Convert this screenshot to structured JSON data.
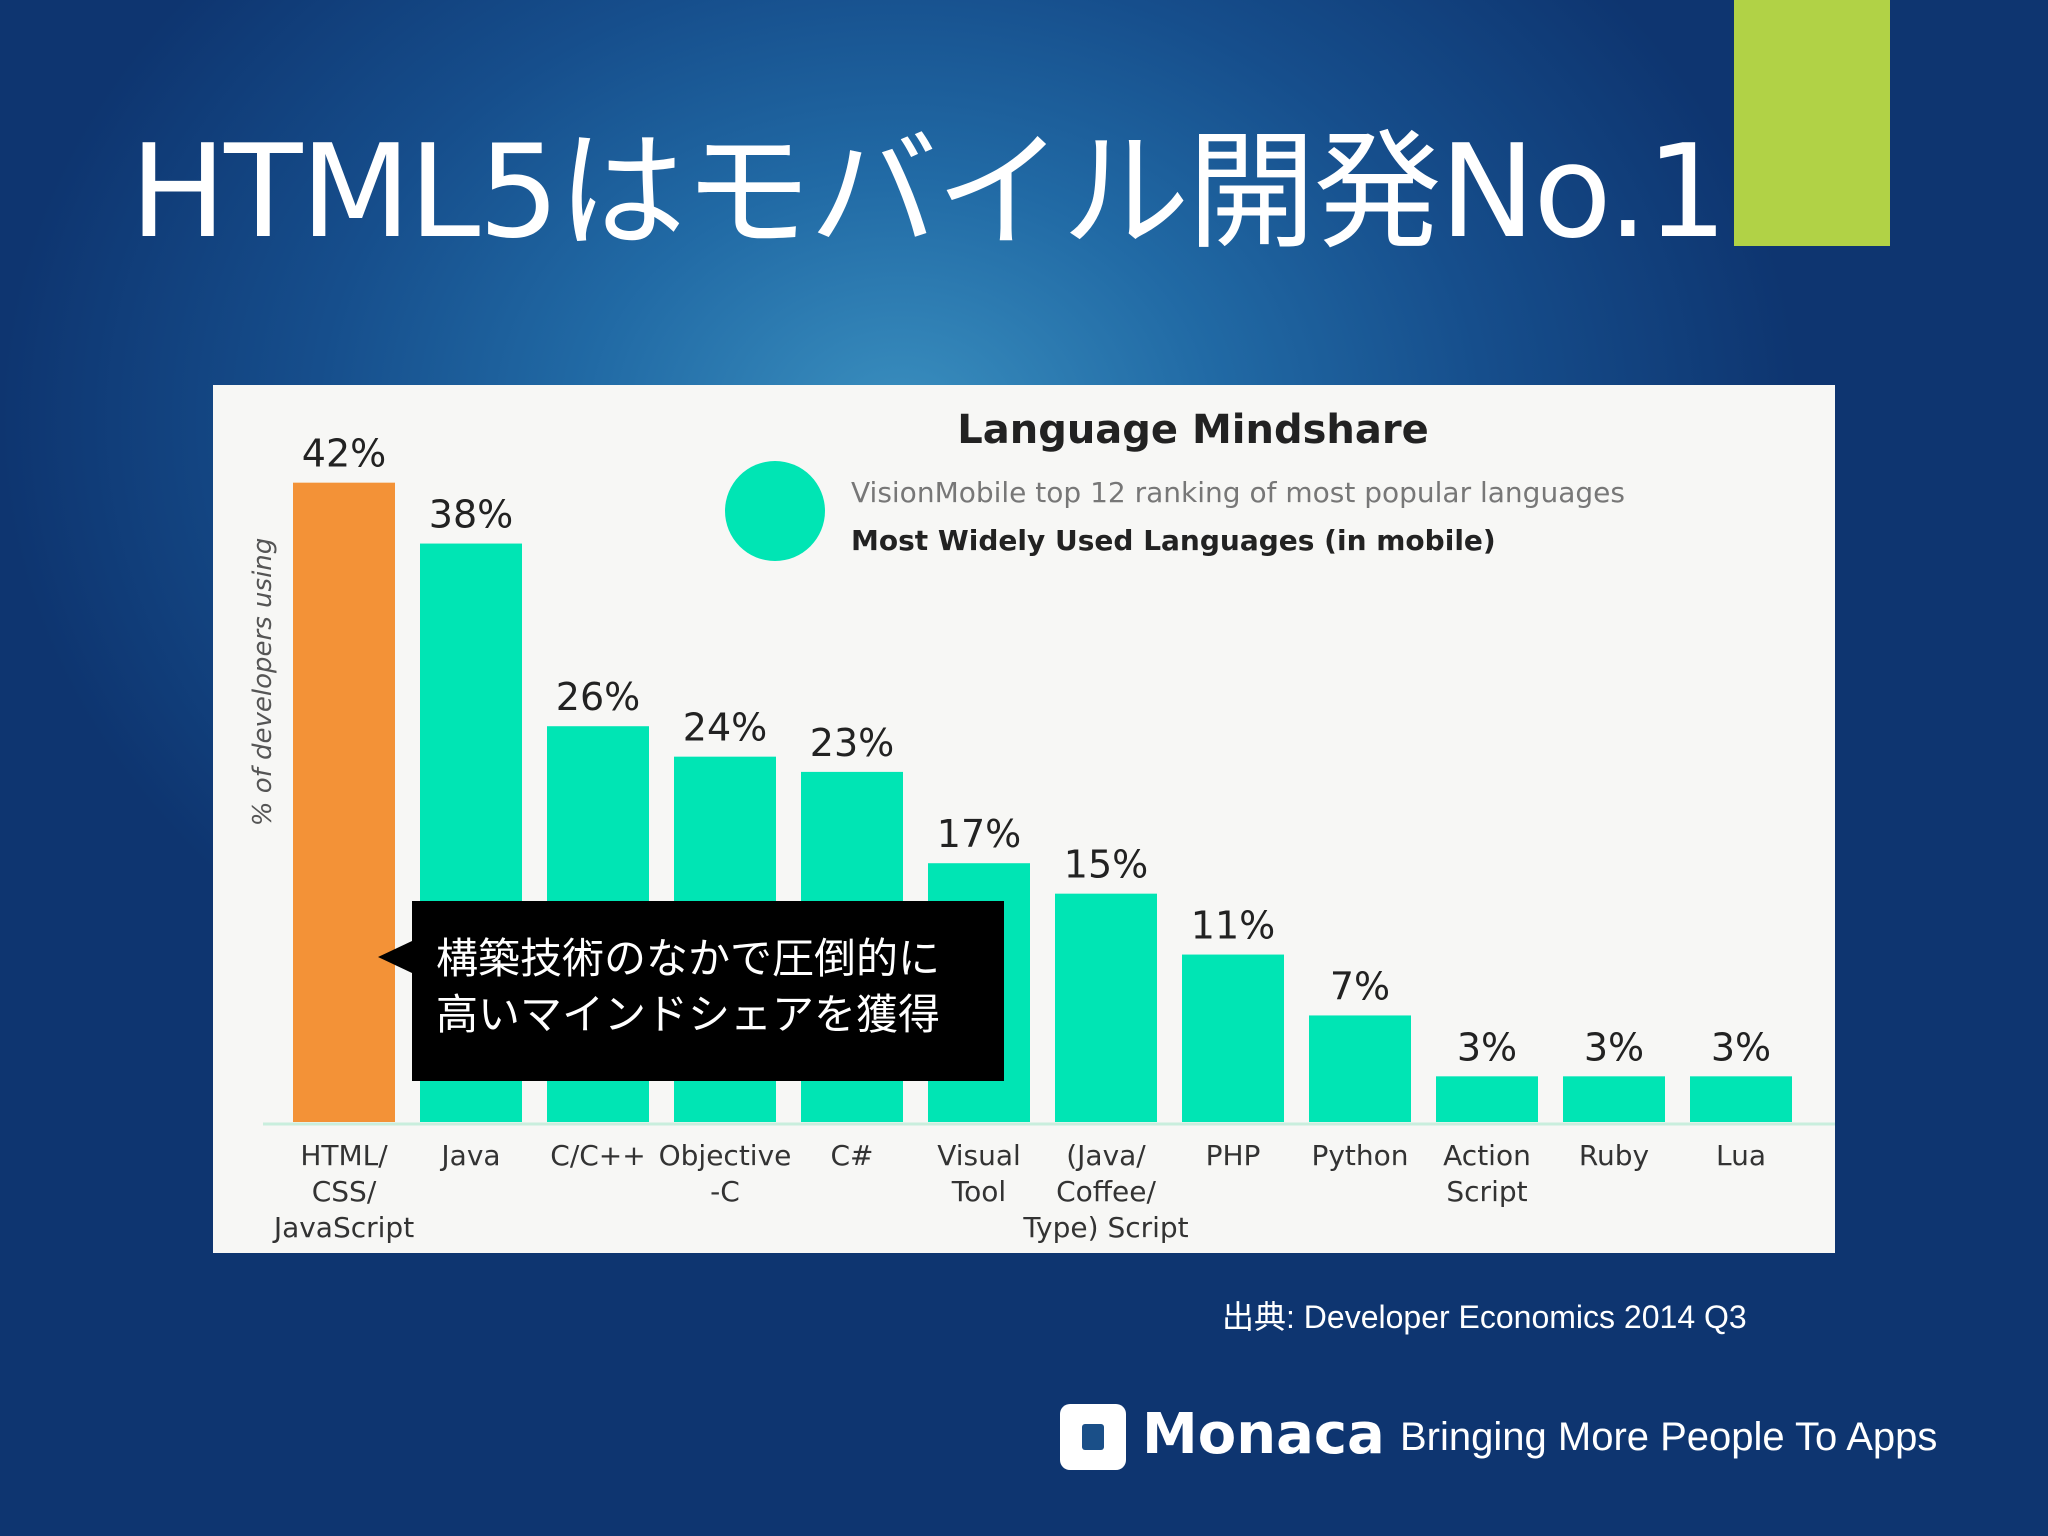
{
  "slide": {
    "title": "HTML5はモバイル開発No.1",
    "source": "出典: Developer Economics 2014 Q3",
    "callout": [
      "構築技術のなかで圧倒的に",
      "高いマインドシェアを獲得"
    ],
    "logo": "Monaca",
    "tagline": "Bringing More People To Apps",
    "colors": {
      "accent": "#b1d246",
      "background": "#1a5a96"
    }
  },
  "chart_data": {
    "type": "bar",
    "title": "Language Mindshare",
    "subtitle": "VisionMobile top 12 ranking of most popular languages",
    "legend": [
      {
        "name": "Most Widely Used Languages (in mobile)",
        "color": "#00e5b4"
      }
    ],
    "ylabel": "% of developers using",
    "xlabel": "",
    "ylim": [
      0,
      45
    ],
    "grid": false,
    "categories": [
      [
        "HTML/",
        "CSS/",
        "JavaScript"
      ],
      [
        "Java"
      ],
      [
        "C/C++"
      ],
      [
        "Objective",
        "-C"
      ],
      [
        "C#"
      ],
      [
        "Visual",
        "Tool"
      ],
      [
        "(Java/",
        "Coffee/",
        "Type) Script"
      ],
      [
        "PHP"
      ],
      [
        "Python"
      ],
      [
        "Action",
        "Script"
      ],
      [
        "Ruby"
      ],
      [
        "Lua"
      ]
    ],
    "values": [
      42,
      38,
      26,
      24,
      23,
      17,
      15,
      11,
      7,
      3,
      3,
      3
    ],
    "value_labels": [
      "42%",
      "38%",
      "26%",
      "24%",
      "23%",
      "17%",
      "15%",
      "11%",
      "7%",
      "3%",
      "3%",
      "3%"
    ],
    "bar_colors": [
      "#f39237",
      "#00e5b4",
      "#00e5b4",
      "#00e5b4",
      "#00e5b4",
      "#00e5b4",
      "#00e5b4",
      "#00e5b4",
      "#00e5b4",
      "#00e5b4",
      "#00e5b4",
      "#00e5b4"
    ]
  }
}
